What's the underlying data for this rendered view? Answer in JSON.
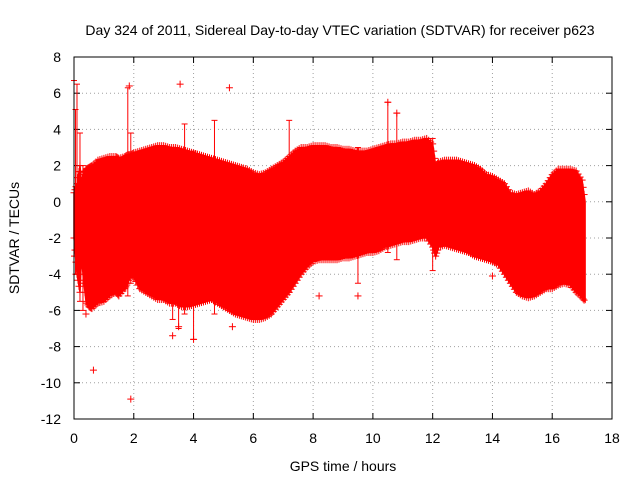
{
  "chart_data": {
    "type": "scatter",
    "title": "Day 324 of 2011, Sidereal Day-to-day VTEC variation (SDTVAR) for receiver p623",
    "xlabel": "GPS time / hours",
    "ylabel": "SDTVAR / TECUs",
    "xlim": [
      0,
      18
    ],
    "ylim": [
      -12,
      8
    ],
    "xticks": [
      "0",
      "2",
      "4",
      "6",
      "8",
      "10",
      "12",
      "14",
      "16",
      "18"
    ],
    "yticks": [
      "-12",
      "-10",
      "-8",
      "-6",
      "-4",
      "-2",
      "0",
      "2",
      "4",
      "6",
      "8"
    ],
    "grid": true,
    "marker": "+",
    "color": "#ff0000",
    "envelope": {
      "x": [
        0.0,
        0.1,
        0.2,
        0.25,
        0.3,
        0.4,
        0.5,
        0.6,
        0.8,
        1.0,
        1.2,
        1.4,
        1.5,
        1.7,
        1.8,
        1.9,
        2.0,
        2.2,
        2.4,
        2.6,
        2.8,
        3.0,
        3.2,
        3.4,
        3.6,
        3.8,
        4.0,
        4.2,
        4.4,
        4.6,
        4.8,
        5.0,
        5.2,
        5.4,
        5.6,
        5.8,
        6.0,
        6.2,
        6.4,
        6.6,
        6.8,
        7.0,
        7.2,
        7.4,
        7.6,
        7.8,
        8.0,
        8.2,
        8.4,
        8.6,
        8.8,
        9.0,
        9.2,
        9.4,
        9.6,
        9.8,
        10.0,
        10.2,
        10.4,
        10.6,
        10.8,
        11.0,
        11.2,
        11.4,
        11.6,
        11.8,
        12.0,
        12.1,
        12.2,
        12.4,
        12.6,
        12.8,
        13.0,
        13.2,
        13.4,
        13.6,
        13.8,
        14.0,
        14.2,
        14.4,
        14.6,
        14.8,
        15.0,
        15.2,
        15.4,
        15.6,
        15.8,
        16.0,
        16.2,
        16.4,
        16.6,
        16.8,
        17.0,
        17.1
      ],
      "upper": [
        0.5,
        1.0,
        2.0,
        1.0,
        1.5,
        1.8,
        1.9,
        2.0,
        2.3,
        2.4,
        2.5,
        2.5,
        2.4,
        2.5,
        2.6,
        2.6,
        2.7,
        2.8,
        2.9,
        3.0,
        3.1,
        3.1,
        3.0,
        3.0,
        2.9,
        2.8,
        2.7,
        2.6,
        2.5,
        2.4,
        2.3,
        2.2,
        2.1,
        2.0,
        1.9,
        1.8,
        1.6,
        1.5,
        1.6,
        1.8,
        2.0,
        2.2,
        2.5,
        2.8,
        3.0,
        3.0,
        3.1,
        3.1,
        3.1,
        3.0,
        3.0,
        2.9,
        2.9,
        2.8,
        2.8,
        2.8,
        2.9,
        3.0,
        3.1,
        3.2,
        3.2,
        3.3,
        3.3,
        3.4,
        3.4,
        3.5,
        3.2,
        2.0,
        2.2,
        2.3,
        2.3,
        2.3,
        2.2,
        2.1,
        2.0,
        1.8,
        1.5,
        1.4,
        1.2,
        1.0,
        0.5,
        0.4,
        0.5,
        0.6,
        0.4,
        0.6,
        1.0,
        1.5,
        1.8,
        1.8,
        1.8,
        1.7,
        1.2,
        0.0
      ],
      "lower": [
        -2.0,
        -4.0,
        -5.0,
        -3.0,
        -4.0,
        -5.5,
        -5.8,
        -5.9,
        -5.6,
        -5.5,
        -5.2,
        -5.0,
        -5.2,
        -4.8,
        -4.5,
        -4.0,
        -4.2,
        -4.8,
        -5.0,
        -5.2,
        -5.4,
        -5.4,
        -5.6,
        -5.6,
        -5.8,
        -5.8,
        -5.7,
        -5.6,
        -5.5,
        -5.4,
        -5.6,
        -5.8,
        -6.0,
        -6.2,
        -6.3,
        -6.4,
        -6.5,
        -6.5,
        -6.4,
        -6.2,
        -5.8,
        -5.4,
        -5.0,
        -4.5,
        -4.0,
        -3.6,
        -3.3,
        -3.2,
        -3.2,
        -3.2,
        -3.2,
        -3.1,
        -3.1,
        -3.0,
        -2.9,
        -2.8,
        -2.8,
        -2.7,
        -2.5,
        -2.4,
        -2.3,
        -2.2,
        -2.2,
        -2.1,
        -2.0,
        -2.0,
        -2.5,
        -3.0,
        -2.5,
        -2.4,
        -2.5,
        -2.6,
        -2.7,
        -2.8,
        -3.0,
        -3.1,
        -3.2,
        -3.3,
        -3.5,
        -4.0,
        -4.5,
        -5.0,
        -5.2,
        -5.3,
        -5.2,
        -5.0,
        -4.8,
        -4.8,
        -4.6,
        -4.5,
        -4.6,
        -5.0,
        -5.3,
        -5.5
      ]
    },
    "spikes": [
      {
        "x": 0.0,
        "y1": -3.0,
        "y2": 6.7
      },
      {
        "x": 0.05,
        "y1": -4.0,
        "y2": 5.1
      },
      {
        "x": 0.1,
        "y1": -4.0,
        "y2": 6.5
      },
      {
        "x": 0.2,
        "y1": -5.5,
        "y2": 3.8
      },
      {
        "x": 0.3,
        "y1": -6.0,
        "y2": 2.0
      },
      {
        "x": 1.8,
        "y1": -5.2,
        "y2": 6.3
      },
      {
        "x": 1.9,
        "y1": -4.5,
        "y2": 3.8
      },
      {
        "x": 3.3,
        "y1": -6.5,
        "y2": 3.0
      },
      {
        "x": 3.5,
        "y1": -7.0,
        "y2": 2.5
      },
      {
        "x": 3.7,
        "y1": -6.2,
        "y2": 4.3
      },
      {
        "x": 4.0,
        "y1": -7.6,
        "y2": 2.8
      },
      {
        "x": 4.7,
        "y1": -6.2,
        "y2": 4.5
      },
      {
        "x": 7.2,
        "y1": -5.0,
        "y2": 4.5
      },
      {
        "x": 9.5,
        "y1": -4.5,
        "y2": 3.0
      },
      {
        "x": 10.5,
        "y1": -2.8,
        "y2": 5.5
      },
      {
        "x": 10.8,
        "y1": -3.2,
        "y2": 4.9
      },
      {
        "x": 12.0,
        "y1": -3.8,
        "y2": 3.5
      }
    ],
    "points": [
      {
        "x": 0.65,
        "y": -9.3
      },
      {
        "x": 1.9,
        "y": -10.9
      },
      {
        "x": 3.55,
        "y": 6.5
      },
      {
        "x": 5.2,
        "y": 6.3
      },
      {
        "x": 3.3,
        "y": -7.4
      },
      {
        "x": 3.5,
        "y": -6.9
      },
      {
        "x": 4.0,
        "y": -7.6
      },
      {
        "x": 5.3,
        "y": -6.9
      },
      {
        "x": 8.2,
        "y": -5.2
      },
      {
        "x": 9.5,
        "y": -5.2
      },
      {
        "x": 14.0,
        "y": -4.1
      },
      {
        "x": 0.4,
        "y": -6.2
      },
      {
        "x": 10.5,
        "y": 5.5
      },
      {
        "x": 10.8,
        "y": 4.9
      },
      {
        "x": 1.85,
        "y": 6.4
      }
    ]
  }
}
